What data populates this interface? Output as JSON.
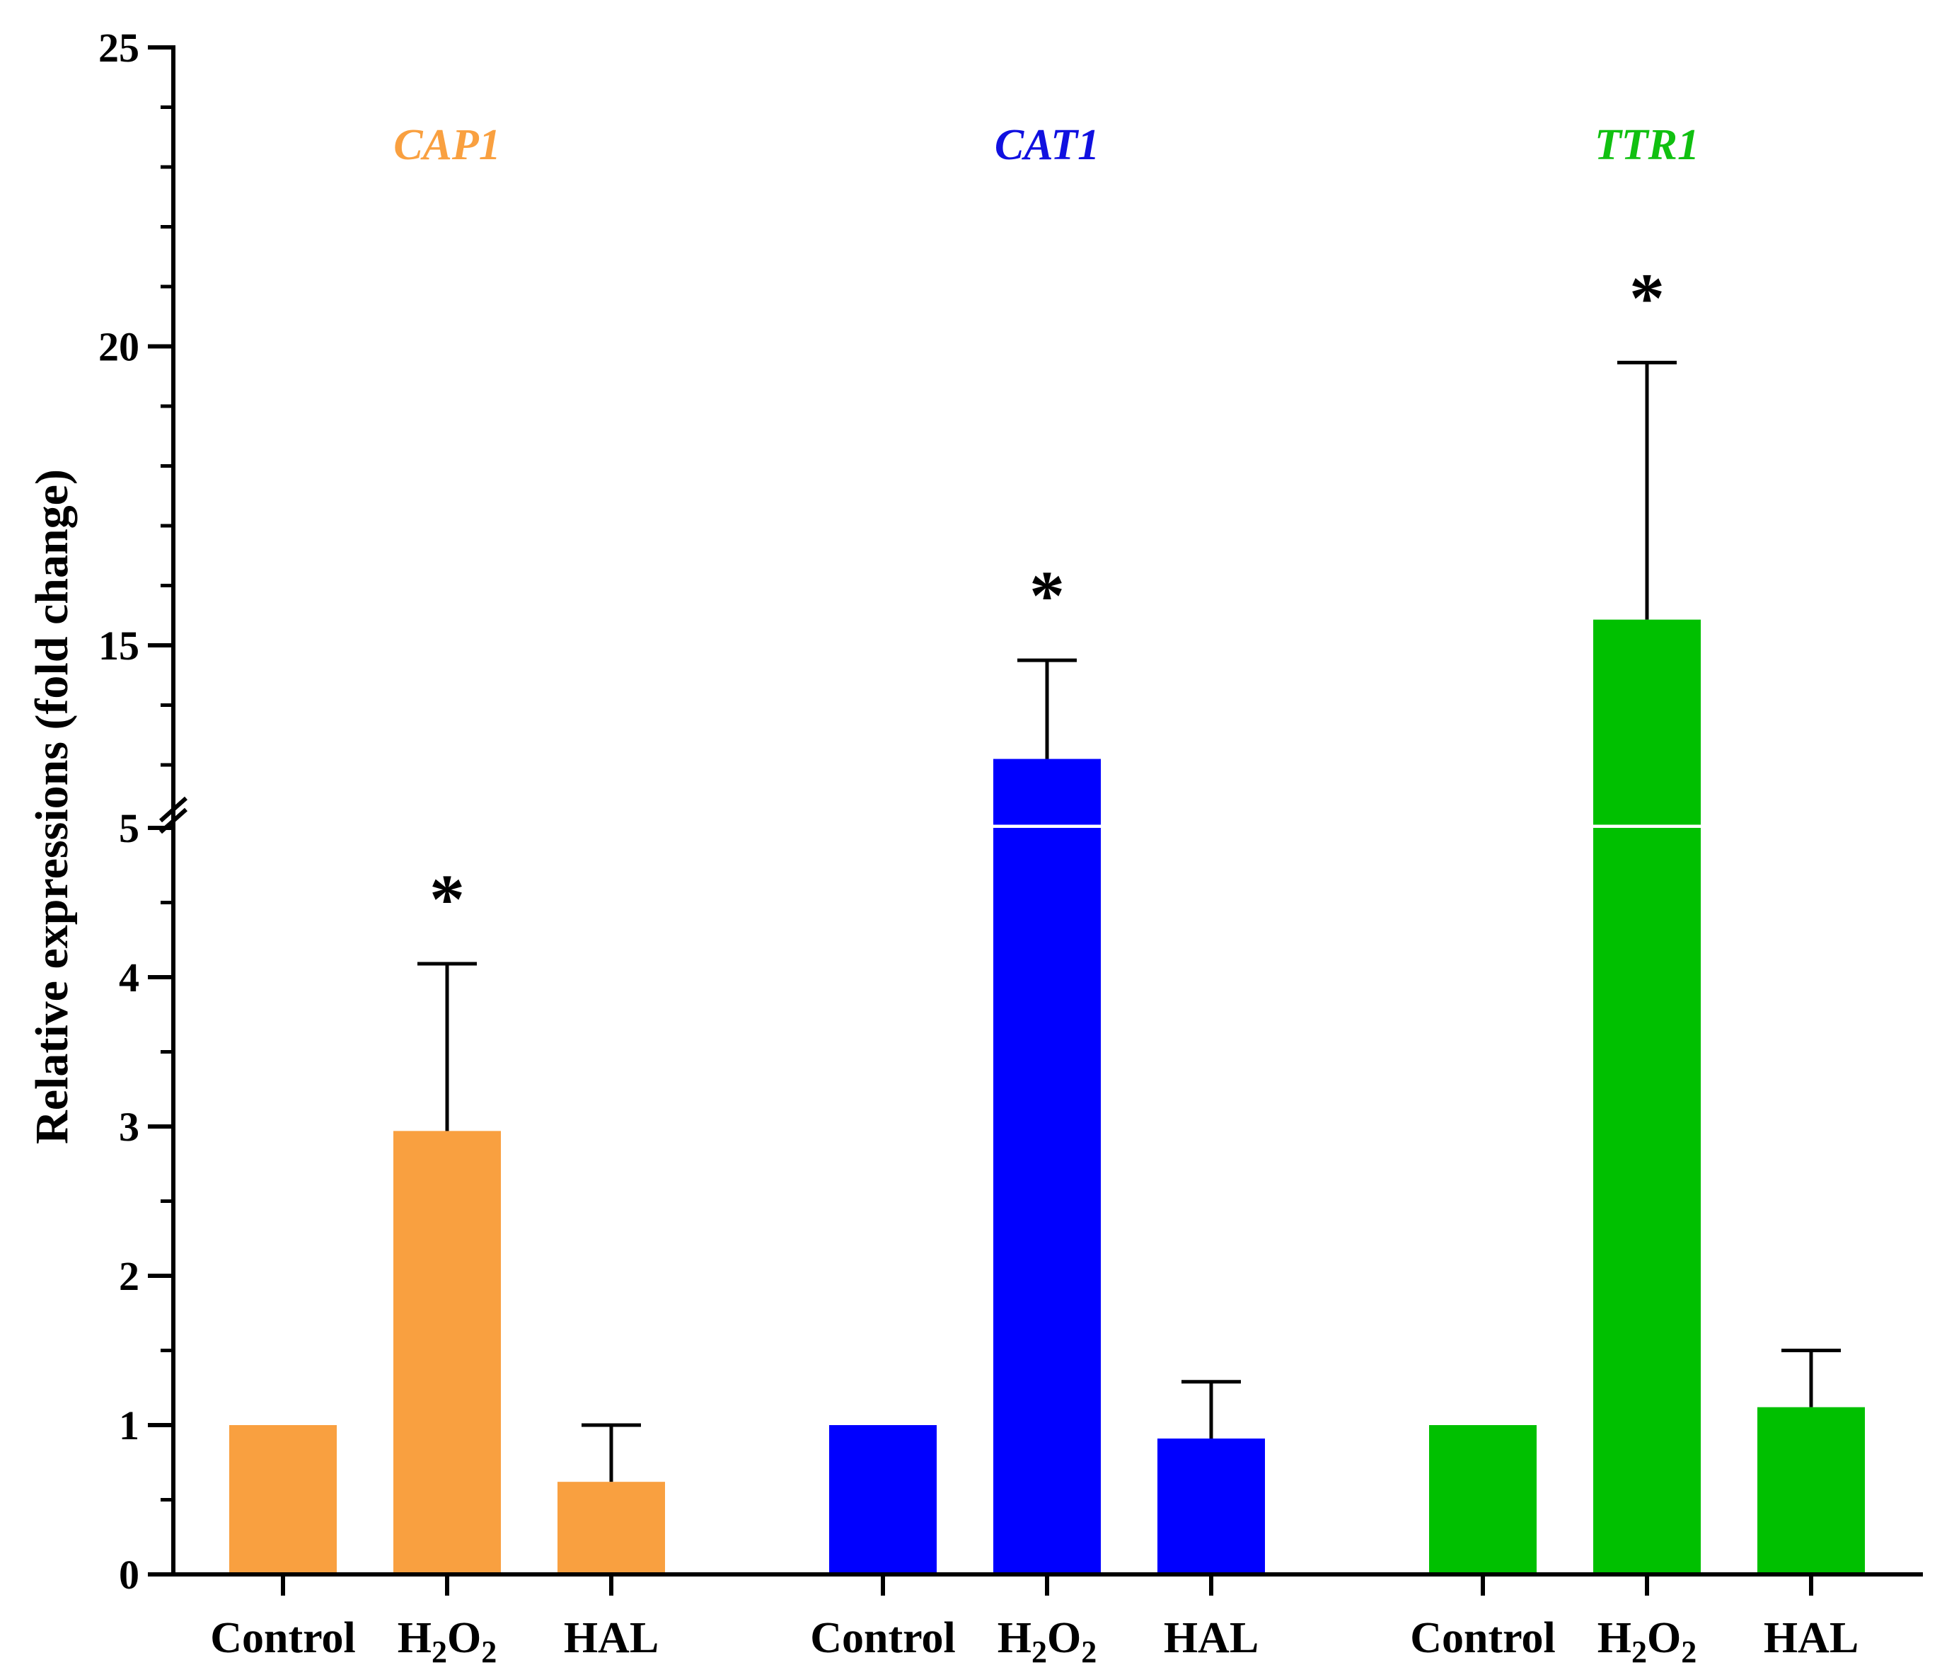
{
  "chart_data": {
    "type": "bar",
    "ylabel": "Relative expressions (fold change)",
    "y_axis_break": {
      "lower_range": [
        0,
        5
      ],
      "upper_range": [
        12,
        25
      ]
    },
    "y_ticks_lower": [
      {
        "value": 0,
        "label": "0"
      },
      {
        "value": 1,
        "label": "1"
      },
      {
        "value": 2,
        "label": "2"
      },
      {
        "value": 3,
        "label": "3"
      },
      {
        "value": 4,
        "label": "4"
      },
      {
        "value": 5,
        "label": "5"
      }
    ],
    "y_ticks_upper": [
      {
        "value": 15,
        "label": "15"
      },
      {
        "value": 20,
        "label": "20"
      },
      {
        "value": 25,
        "label": "25"
      }
    ],
    "groups": [
      {
        "gene": "CAP1",
        "color": "#F9A040",
        "label_color": "#F9A040",
        "bars": [
          {
            "label": "Control",
            "value": 1.0,
            "error": 0,
            "star": ""
          },
          {
            "label": "H2O2",
            "value": 2.97,
            "error": 1.12,
            "star": "*"
          },
          {
            "label": "HAL",
            "value": 0.62,
            "error": 0.38,
            "star": ""
          }
        ]
      },
      {
        "gene": "CAT1",
        "color": "#0000FF",
        "label_color": "#1010E0",
        "bars": [
          {
            "label": "Control",
            "value": 1.0,
            "error": 0,
            "star": ""
          },
          {
            "label": "H2O2",
            "value": 13.1,
            "error": 1.65,
            "star": "*"
          },
          {
            "label": "HAL",
            "value": 0.91,
            "error": 0.38,
            "star": ""
          }
        ]
      },
      {
        "gene": "TTR1",
        "color": "#00C000",
        "label_color": "#10C010",
        "bars": [
          {
            "label": "Control",
            "value": 1.0,
            "error": 0,
            "star": ""
          },
          {
            "label": "H2O2",
            "value": 15.43,
            "error": 4.3,
            "star": "*"
          },
          {
            "label": "HAL",
            "value": 1.12,
            "error": 0.38,
            "star": ""
          }
        ]
      }
    ]
  }
}
